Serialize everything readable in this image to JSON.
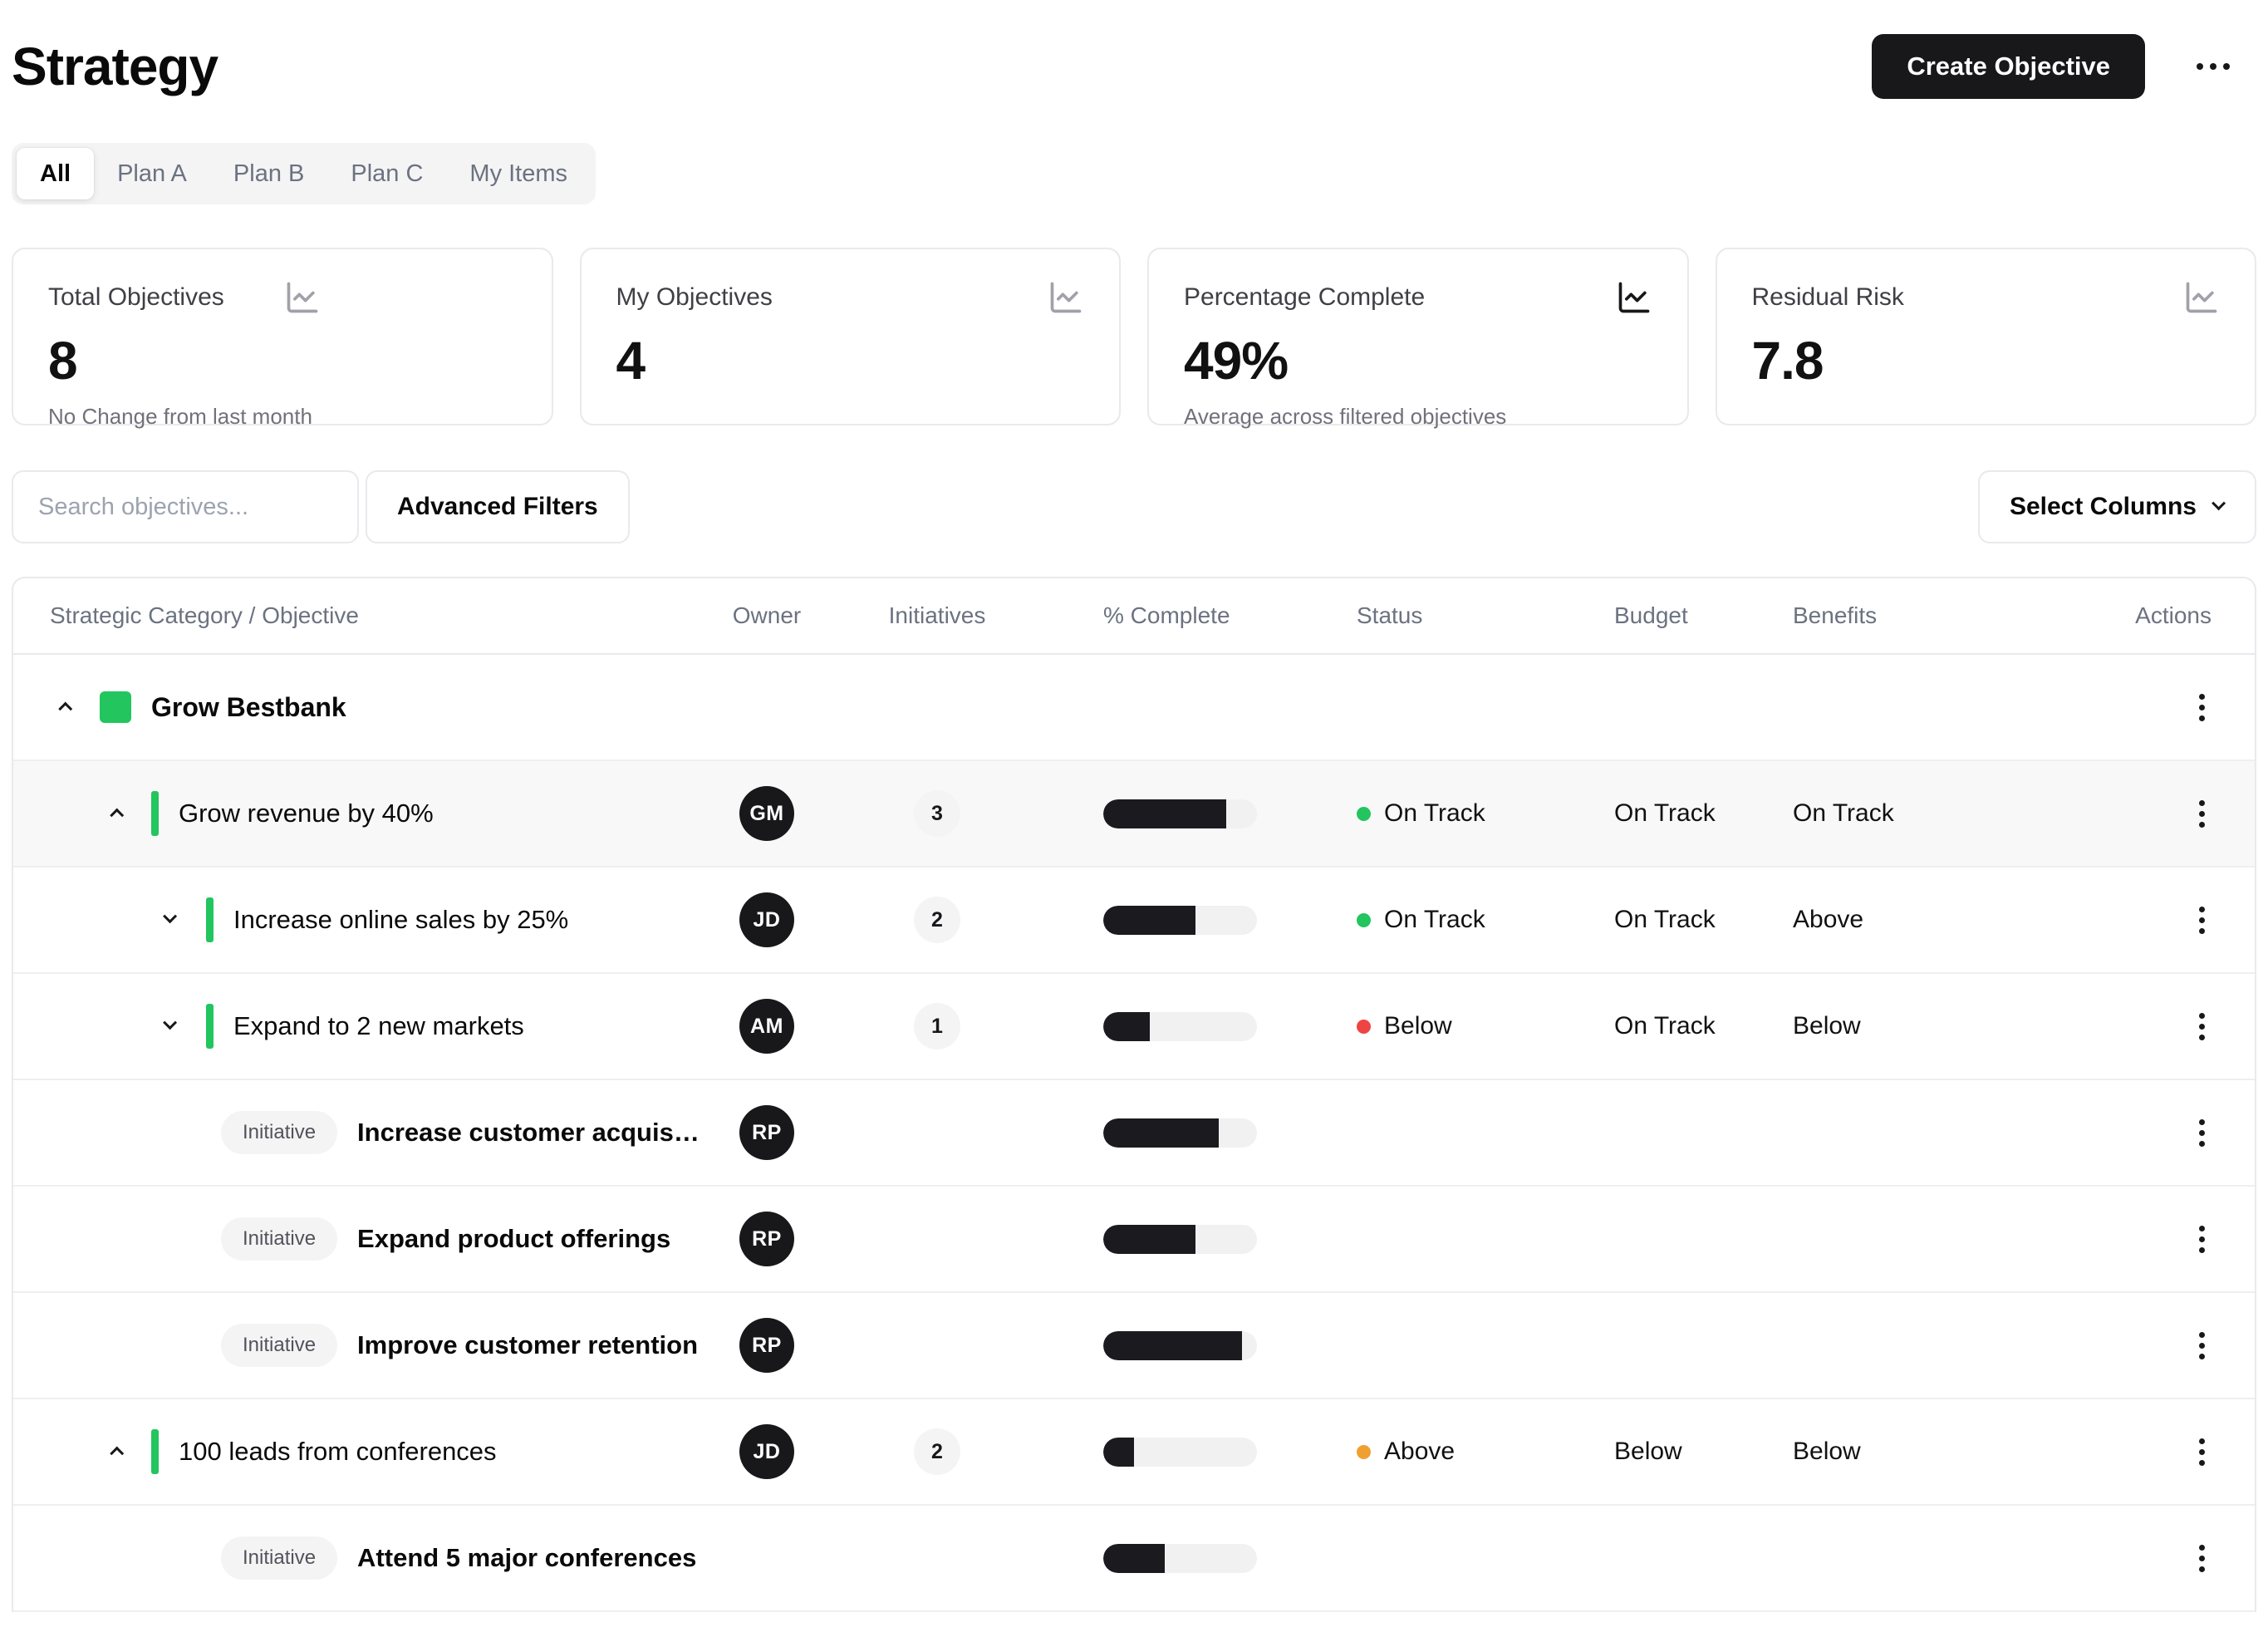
{
  "page": {
    "title": "Strategy"
  },
  "header": {
    "create_button": "Create Objective"
  },
  "tabs": [
    {
      "label": "All",
      "active": true
    },
    {
      "label": "Plan A",
      "active": false
    },
    {
      "label": "Plan B",
      "active": false
    },
    {
      "label": "Plan C",
      "active": false
    },
    {
      "label": "My Items",
      "active": false
    }
  ],
  "stat_cards": [
    {
      "title": "Total Objectives",
      "value": "8",
      "subtitle": "No Change from last month"
    },
    {
      "title": "My Objectives",
      "value": "4",
      "subtitle": ""
    },
    {
      "title": "Percentage Complete",
      "value": "49%",
      "subtitle": "Average across filtered objectives"
    },
    {
      "title": "Residual Risk",
      "value": "7.8",
      "subtitle": ""
    }
  ],
  "toolbar": {
    "search_placeholder": "Search objectives...",
    "advanced_filters": "Advanced Filters",
    "select_columns": "Select Columns"
  },
  "table": {
    "columns": {
      "name": "Strategic Category / Objective",
      "owner": "Owner",
      "initiatives": "Initiatives",
      "complete": "% Complete",
      "status": "Status",
      "budget": "Budget",
      "benefits": "Benefits",
      "actions": "Actions"
    },
    "initiative_label": "Initiative",
    "rows": [
      {
        "type": "category",
        "name": "Grow Bestbank"
      },
      {
        "type": "objective",
        "name": "Grow revenue by 40%",
        "owner": "GM",
        "initiatives": "3",
        "progress": 80,
        "status": "On Track",
        "status_color": "green",
        "budget": "On Track",
        "benefits": "On Track"
      },
      {
        "type": "objective",
        "name": "Increase online sales by 25%",
        "owner": "JD",
        "initiatives": "2",
        "progress": 60,
        "status": "On Track",
        "status_color": "green",
        "budget": "On Track",
        "benefits": "Above"
      },
      {
        "type": "objective",
        "name": "Expand to 2 new markets",
        "owner": "AM",
        "initiatives": "1",
        "progress": 30,
        "status": "Below",
        "status_color": "red",
        "budget": "On Track",
        "benefits": "Below"
      },
      {
        "type": "initiative",
        "name": "Increase customer acquisition",
        "owner": "RP",
        "progress": 75
      },
      {
        "type": "initiative",
        "name": "Expand product offerings",
        "owner": "RP",
        "progress": 60
      },
      {
        "type": "initiative",
        "name": "Improve customer retention",
        "owner": "RP",
        "progress": 90
      },
      {
        "type": "objective",
        "name": "100 leads from conferences",
        "owner": "JD",
        "initiatives": "2",
        "progress": 20,
        "status": "Above",
        "status_color": "amber",
        "budget": "Below",
        "benefits": "Below"
      },
      {
        "type": "initiative",
        "name": "Attend 5 major conferences",
        "owner": "",
        "progress": 40
      }
    ]
  },
  "colors": {
    "accent_green": "#22c55e",
    "status_green": "#22c55e",
    "status_red": "#ef4444",
    "status_amber": "#f0a030",
    "brand_black": "#18181b",
    "progress_fill": "#1b1b1f",
    "muted_text": "#6b7280"
  }
}
